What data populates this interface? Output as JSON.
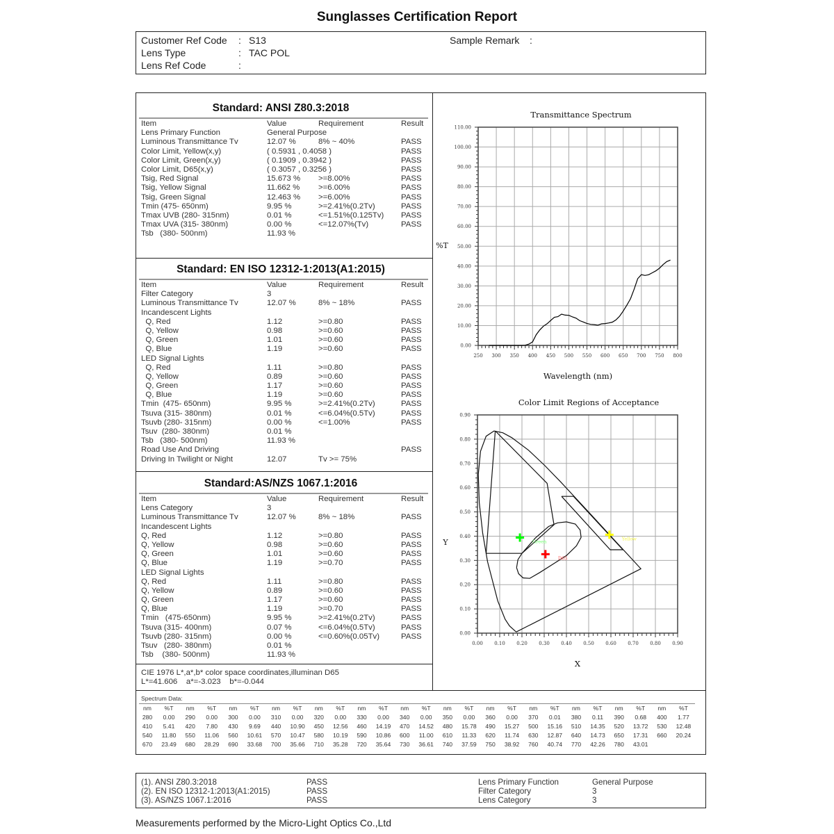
{
  "title": "Sunglasses Certification Report",
  "header": {
    "customer_ref_label": "Customer Ref Code",
    "customer_ref_value": "S13",
    "lens_type_label": "Lens Type",
    "lens_type_value": "TAC POL",
    "lens_ref_label": "Lens Ref Code",
    "lens_ref_value": "",
    "sample_remark_label": "Sample Remark",
    "sample_remark_value": "",
    "colon": ":"
  },
  "sections": [
    {
      "title": "Standard: ANSI Z80.3:2018",
      "columns": [
        "Item",
        "Value",
        "Requirement",
        "Result"
      ],
      "rows": [
        [
          "Lens Primary Function",
          "General Purpose",
          "",
          ""
        ],
        [
          "Luminous Transmittance Tv",
          "12.07 %",
          "8% ~ 40%",
          "PASS"
        ],
        [
          "Color Limit, Yellow(x,y)",
          "( 0.5931 , 0.4058 )",
          "",
          "PASS"
        ],
        [
          "Color Limit, Green(x,y)",
          "( 0.1909 , 0.3942 )",
          "",
          "PASS"
        ],
        [
          "Color Limit, D65(x,y)",
          "( 0.3057 , 0.3256 )",
          "",
          "PASS"
        ],
        [
          "Tsig, Red Signal",
          "15.673 %",
          ">=8.00%",
          "PASS"
        ],
        [
          "Tsig, Yellow Signal",
          "11.662 %",
          ">=6.00%",
          "PASS"
        ],
        [
          "Tsig, Green Signal",
          "12.463 %",
          ">=6.00%",
          "PASS"
        ],
        [
          "Tmin (475- 650nm)",
          "9.95 %",
          ">=2.41%(0.2Tv)",
          "PASS"
        ],
        [
          "Tmax UVB (280- 315nm)",
          "0.01 %",
          "<=1.51%(0.125Tv)",
          "PASS"
        ],
        [
          "Tmax UVA (315- 380nm)",
          "0.00 %",
          "<=12.07%(Tv)",
          "PASS"
        ],
        [
          "Tsb   (380- 500nm)",
          "11.93 %",
          "",
          ""
        ]
      ]
    },
    {
      "title": "Standard: EN ISO 12312-1:2013(A1:2015)",
      "columns": [
        "Item",
        "Value",
        "Requirement",
        "Result"
      ],
      "rows": [
        [
          "Filter Category",
          "3",
          "",
          ""
        ],
        [
          "Luminous Transmittance Tv",
          "12.07 %",
          "8% ~ 18%",
          "PASS"
        ],
        [
          "Incandescent Lights",
          "",
          "",
          ""
        ],
        [
          "  Q, Red",
          "1.12",
          ">=0.80",
          "PASS"
        ],
        [
          "  Q, Yellow",
          "0.98",
          ">=0.60",
          "PASS"
        ],
        [
          "  Q, Green",
          "1.01",
          ">=0.60",
          "PASS"
        ],
        [
          "  Q, Blue",
          "1.19",
          ">=0.60",
          "PASS"
        ],
        [
          "LED Signal Lights",
          "",
          "",
          ""
        ],
        [
          "  Q, Red",
          "1.11",
          ">=0.80",
          "PASS"
        ],
        [
          "  Q, Yellow",
          "0.89",
          ">=0.60",
          "PASS"
        ],
        [
          "  Q, Green",
          "1.17",
          ">=0.60",
          "PASS"
        ],
        [
          "  Q, Blue",
          "1.19",
          ">=0.60",
          "PASS"
        ],
        [
          "Tmin  (475- 650nm)",
          "9.95 %",
          ">=2.41%(0.2Tv)",
          "PASS"
        ],
        [
          "Tsuva (315- 380nm)",
          "0.01 %",
          "<=6.04%(0.5Tv)",
          "PASS"
        ],
        [
          "Tsuvb (280- 315nm)",
          "0.00 %",
          "<=1.00%",
          "PASS"
        ],
        [
          "Tsuv  (280- 380nm)",
          "0.01 %",
          "",
          ""
        ],
        [
          "Tsb   (380- 500nm)",
          "11.93 %",
          "",
          ""
        ],
        [
          "Road Use And Driving",
          "",
          "",
          "PASS"
        ],
        [
          "Driving In Twilight or Night",
          "12.07",
          "Tv >= 75%",
          ""
        ]
      ]
    },
    {
      "title": "Standard:AS/NZS 1067.1:2016",
      "columns": [
        "Item",
        "Value",
        "Requirement",
        "Result"
      ],
      "rows": [
        [
          "Lens Category",
          "3",
          "",
          ""
        ],
        [
          "Luminous Transmittance Tv",
          "12.07 %",
          "8% ~ 18%",
          "PASS"
        ],
        [
          "Incandescent Lights",
          "",
          "",
          ""
        ],
        [
          "Q, Red",
          "1.12",
          ">=0.80",
          "PASS"
        ],
        [
          "Q, Yellow",
          "0.98",
          ">=0.60",
          "PASS"
        ],
        [
          "Q, Green",
          "1.01",
          ">=0.60",
          "PASS"
        ],
        [
          "Q, Blue",
          "1.19",
          ">=0.70",
          "PASS"
        ],
        [
          "LED Signal Lights",
          "",
          "",
          ""
        ],
        [
          "Q, Red",
          "1.11",
          ">=0.80",
          "PASS"
        ],
        [
          "Q, Yellow",
          "0.89",
          ">=0.60",
          "PASS"
        ],
        [
          "Q, Green",
          "1.17",
          ">=0.60",
          "PASS"
        ],
        [
          "Q, Blue",
          "1.19",
          ">=0.70",
          "PASS"
        ],
        [
          "Tmin   (475-650nm)",
          "9.95 %",
          ">=2.41%(0.2Tv)",
          "PASS"
        ],
        [
          "Tsuva (315- 400nm)",
          "0.07 %",
          "<=6.04%(0.5Tv)",
          "PASS"
        ],
        [
          "Tsuvb (280- 315nm)",
          "0.00 %",
          "<=0.60%(0.05Tv)",
          "PASS"
        ],
        [
          "Tsuv   (280- 380nm)",
          "0.01 %",
          "",
          ""
        ],
        [
          "Tsb    (380- 500nm)",
          "11.93 %",
          "",
          ""
        ]
      ]
    }
  ],
  "cie_lab": {
    "line1": "CIE 1976 L*,a*,b* color space coordinates,illuminan D65",
    "line2": "L*=41.606    a*=-3.023    b*=-0.044"
  },
  "spectrum_table": {
    "label": "Spectrum Data:",
    "header": [
      "nm",
      "%T"
    ],
    "rows": [
      [
        "280",
        "0.00",
        "290",
        "0.00",
        "300",
        "0.00",
        "310",
        "0.00",
        "320",
        "0.00",
        "330",
        "0.00",
        "340",
        "0.00",
        "350",
        "0.00",
        "360",
        "0.00",
        "370",
        "0.01",
        "380",
        "0.11",
        "390",
        "0.68",
        "400",
        "1.77"
      ],
      [
        "410",
        "5.41",
        "420",
        "7.80",
        "430",
        "9.69",
        "440",
        "10.90",
        "450",
        "12.56",
        "460",
        "14.19",
        "470",
        "14.52",
        "480",
        "15.78",
        "490",
        "15.27",
        "500",
        "15.16",
        "510",
        "14.35",
        "520",
        "13.72",
        "530",
        "12.48"
      ],
      [
        "540",
        "11.80",
        "550",
        "11.06",
        "560",
        "10.61",
        "570",
        "10.47",
        "580",
        "10.19",
        "590",
        "10.86",
        "600",
        "11.00",
        "610",
        "11.33",
        "620",
        "11.74",
        "630",
        "12.87",
        "640",
        "14.73",
        "650",
        "17.31",
        "660",
        "20.24"
      ],
      [
        "670",
        "23.49",
        "680",
        "28.29",
        "690",
        "33.68",
        "700",
        "35.66",
        "710",
        "35.28",
        "720",
        "35.64",
        "730",
        "36.61",
        "740",
        "37.59",
        "750",
        "38.92",
        "760",
        "40.74",
        "770",
        "42.26",
        "780",
        "43.01",
        "",
        ""
      ]
    ]
  },
  "summary": {
    "rows": [
      [
        "(1). ANSI Z80.3:2018",
        "PASS",
        "Lens Primary Function",
        "General Purpose"
      ],
      [
        "(2). EN ISO 12312-1:2013(A1:2015)",
        "PASS",
        "Filter Category",
        "3"
      ],
      [
        "(3). AS/NZS 1067.1:2016",
        "PASS",
        "Lens Category",
        "3"
      ]
    ]
  },
  "footer": "Measurements performed by the Micro-Light Optics Co.,Ltd",
  "chart_data": [
    {
      "type": "line",
      "title": "Transmittance Spectrum",
      "xlabel": "Wavelength (nm)",
      "ylabel": "%T",
      "xlim": [
        250,
        800
      ],
      "ylim": [
        0,
        110
      ],
      "xticks": [
        250,
        300,
        350,
        400,
        450,
        500,
        550,
        600,
        650,
        700,
        750,
        800
      ],
      "yticks": [
        "0.00",
        "10.00",
        "20.00",
        "30.00",
        "40.00",
        "50.00",
        "60.00",
        "70.00",
        "80.00",
        "90.00",
        "100.00",
        "110.00"
      ],
      "grid": true,
      "x": [
        280,
        290,
        300,
        310,
        320,
        330,
        340,
        350,
        360,
        370,
        380,
        390,
        400,
        410,
        420,
        430,
        440,
        450,
        460,
        470,
        480,
        490,
        500,
        510,
        520,
        530,
        540,
        550,
        560,
        570,
        580,
        590,
        600,
        610,
        620,
        630,
        640,
        650,
        660,
        670,
        680,
        690,
        700,
        710,
        720,
        730,
        740,
        750,
        760,
        770,
        780
      ],
      "y": [
        0,
        0,
        0,
        0,
        0,
        0,
        0,
        0,
        0,
        0.01,
        0.11,
        0.68,
        1.77,
        5.41,
        7.8,
        9.69,
        10.9,
        12.56,
        14.19,
        14.52,
        15.78,
        15.27,
        15.16,
        14.35,
        13.72,
        12.48,
        11.8,
        11.06,
        10.61,
        10.47,
        10.19,
        10.86,
        11.0,
        11.33,
        11.74,
        12.87,
        14.73,
        17.31,
        20.24,
        23.49,
        28.29,
        33.68,
        35.66,
        35.28,
        35.64,
        36.61,
        37.59,
        38.92,
        40.74,
        42.26,
        43.01
      ],
      "line_color": "#000000"
    },
    {
      "type": "scatter",
      "title": "Color Limit Regions of Acceptance",
      "xlabel": "X",
      "ylabel": "Y",
      "xlim": [
        0,
        0.9
      ],
      "ylim": [
        0,
        0.9
      ],
      "xticks": [
        "0.00",
        "0.10",
        "0.20",
        "0.30",
        "0.40",
        "0.50",
        "0.60",
        "0.70",
        "0.80",
        "0.90"
      ],
      "yticks": [
        "0.00",
        "0.10",
        "0.20",
        "0.30",
        "0.40",
        "0.50",
        "0.60",
        "0.70",
        "0.80",
        "0.90"
      ],
      "grid": true,
      "points": [
        {
          "name": "Green",
          "x": 0.1909,
          "y": 0.3942,
          "color": "#00ff00",
          "label_color": "#66ff66"
        },
        {
          "name": "D65",
          "x": 0.3057,
          "y": 0.3256,
          "color": "#ff0000",
          "label_color": "#ff5555"
        },
        {
          "name": "Yellow",
          "x": 0.5931,
          "y": 0.4058,
          "color": "#ffff00",
          "label_color": "#f5f542"
        }
      ],
      "spectral_locus": [
        [
          0.1741,
          0.005
        ],
        [
          0.144,
          0.0297
        ],
        [
          0.1241,
          0.0578
        ],
        [
          0.0913,
          0.1327
        ],
        [
          0.0454,
          0.295
        ],
        [
          0.0235,
          0.4127
        ],
        [
          0.0082,
          0.5384
        ],
        [
          0.0039,
          0.6548
        ],
        [
          0.0139,
          0.7502
        ],
        [
          0.0389,
          0.812
        ],
        [
          0.0743,
          0.8338
        ],
        [
          0.1142,
          0.8262
        ],
        [
          0.1547,
          0.8059
        ],
        [
          0.2296,
          0.7543
        ],
        [
          0.3016,
          0.6923
        ],
        [
          0.3731,
          0.6245
        ],
        [
          0.4441,
          0.5547
        ],
        [
          0.5125,
          0.4866
        ],
        [
          0.5752,
          0.4242
        ],
        [
          0.627,
          0.3725
        ],
        [
          0.6915,
          0.3083
        ],
        [
          0.7347,
          0.2653
        ],
        [
          0.1741,
          0.005
        ]
      ],
      "green_region": [
        [
          0.08,
          0.834
        ],
        [
          0.039,
          0.329
        ],
        [
          0.2,
          0.329
        ],
        [
          0.344,
          0.447
        ],
        [
          0.313,
          0.618
        ],
        [
          0.08,
          0.834
        ]
      ],
      "yellow_region": [
        [
          0.378,
          0.564
        ],
        [
          0.432,
          0.564
        ],
        [
          0.654,
          0.344
        ],
        [
          0.597,
          0.344
        ],
        [
          0.378,
          0.564
        ]
      ],
      "d65_region": [
        [
          0.176,
          0.27
        ],
        [
          0.182,
          0.303
        ],
        [
          0.2,
          0.329
        ],
        [
          0.26,
          0.392
        ],
        [
          0.32,
          0.44
        ],
        [
          0.36,
          0.455
        ],
        [
          0.4,
          0.459
        ],
        [
          0.44,
          0.45
        ],
        [
          0.462,
          0.425
        ],
        [
          0.466,
          0.395
        ],
        [
          0.445,
          0.36
        ],
        [
          0.4,
          0.32
        ],
        [
          0.34,
          0.285
        ],
        [
          0.28,
          0.25
        ],
        [
          0.235,
          0.226
        ],
        [
          0.205,
          0.228
        ],
        [
          0.185,
          0.245
        ],
        [
          0.176,
          0.27
        ]
      ]
    }
  ]
}
